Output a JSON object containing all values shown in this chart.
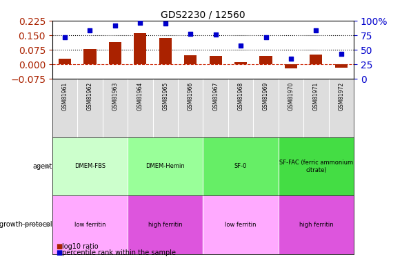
{
  "title": "GDS2230 / 12560",
  "samples": [
    "GSM81961",
    "GSM81962",
    "GSM81963",
    "GSM81964",
    "GSM81965",
    "GSM81966",
    "GSM81967",
    "GSM81968",
    "GSM81969",
    "GSM81970",
    "GSM81971",
    "GSM81972"
  ],
  "log10_ratio": [
    0.03,
    0.08,
    0.115,
    0.16,
    0.135,
    0.048,
    0.043,
    0.012,
    0.045,
    -0.02,
    0.05,
    -0.018
  ],
  "percentile_rank": [
    71,
    83,
    92,
    97,
    95,
    78,
    76,
    57,
    71,
    35,
    83,
    43
  ],
  "ylim_left": [
    -0.075,
    0.225
  ],
  "ylim_right": [
    0,
    100
  ],
  "yticks_left": [
    -0.075,
    0,
    0.075,
    0.15,
    0.225
  ],
  "yticks_right": [
    0,
    25,
    50,
    75,
    100
  ],
  "hlines": [
    0.075,
    0.15
  ],
  "bar_color": "#aa2200",
  "dot_color": "#0000cc",
  "zero_line_color": "#cc2200",
  "background_color": "#ffffff",
  "agent_groups": [
    {
      "label": "DMEM-FBS",
      "start": 0,
      "end": 3,
      "color": "#ccffcc"
    },
    {
      "label": "DMEM-Hemin",
      "start": 3,
      "end": 6,
      "color": "#99ff99"
    },
    {
      "label": "SF-0",
      "start": 6,
      "end": 9,
      "color": "#66ee66"
    },
    {
      "label": "SF-FAC (ferric ammonium\ncitrate)",
      "start": 9,
      "end": 12,
      "color": "#44dd44"
    }
  ],
  "growth_groups": [
    {
      "label": "low ferritin",
      "start": 0,
      "end": 3,
      "color": "#ffaaff"
    },
    {
      "label": "high ferritin",
      "start": 3,
      "end": 6,
      "color": "#dd55dd"
    },
    {
      "label": "low ferritin",
      "start": 6,
      "end": 9,
      "color": "#ffaaff"
    },
    {
      "label": "high ferritin",
      "start": 9,
      "end": 12,
      "color": "#dd55dd"
    }
  ],
  "legend_items": [
    {
      "label": "log10 ratio",
      "color": "#aa2200"
    },
    {
      "label": "percentile rank within the sample",
      "color": "#0000cc"
    }
  ]
}
